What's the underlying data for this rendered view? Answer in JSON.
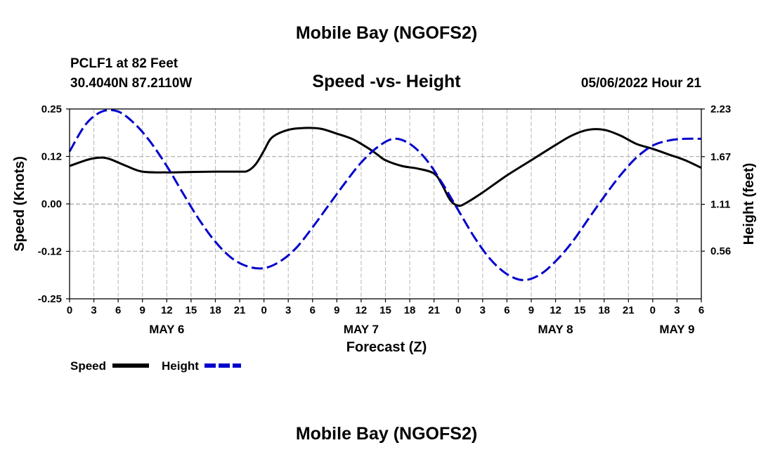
{
  "page": {
    "title": "Mobile Bay (NGOFS2)",
    "footer_title": "Mobile Bay (NGOFS2)",
    "station": "PCLF1 at 82 Feet",
    "coords": "30.4040N  87.2110W",
    "subtitle": "Speed -vs- Height",
    "datetime": "05/06/2022 Hour 21"
  },
  "chart_data": {
    "type": "line",
    "title": "Speed -vs- Height",
    "xlabel": "Forecast (Z)",
    "ylabel": "Speed (Knots)",
    "ylabel_right": "Height (feet)",
    "x_hours_range": [
      0,
      78
    ],
    "x_tick_labels": [
      "0",
      "3",
      "6",
      "9",
      "12",
      "15",
      "18",
      "21",
      "0",
      "3",
      "6",
      "9",
      "12",
      "15",
      "18",
      "21",
      "0",
      "3",
      "6",
      "9",
      "12",
      "15",
      "18",
      "21",
      "0",
      "3",
      "6"
    ],
    "day_labels": [
      {
        "label": "MAY 6",
        "hour": 12
      },
      {
        "label": "MAY 7",
        "hour": 36
      },
      {
        "label": "MAY 8",
        "hour": 60
      },
      {
        "label": "MAY 9",
        "hour": 75
      }
    ],
    "y_left": {
      "range": [
        -0.25,
        0.25
      ],
      "ticks": [
        "0.25",
        "0.12",
        "0.00",
        "-0.12",
        "-0.25"
      ],
      "tick_values": [
        0.25,
        0.125,
        0,
        -0.125,
        -0.25
      ]
    },
    "y_right": {
      "range": [
        0.0,
        2.23
      ],
      "ticks": [
        "2.23",
        "1.67",
        "1.11",
        "0.56"
      ],
      "tick_values": [
        2.23,
        1.67,
        1.11,
        0.56
      ]
    },
    "grid": true,
    "legend_position": "bottom-left",
    "series": [
      {
        "name": "Speed",
        "axis": "left",
        "color": "#000000",
        "style": "solid",
        "x": [
          0,
          2,
          3,
          4,
          5,
          7,
          9,
          12,
          15,
          18,
          21,
          22,
          23,
          24,
          25,
          27,
          29,
          31,
          33,
          35,
          37,
          38,
          39,
          41,
          43,
          45,
          46,
          47,
          48,
          49,
          51,
          54,
          57,
          60,
          62,
          64,
          66,
          68,
          70,
          72,
          74,
          76,
          78
        ],
        "values": [
          0.1,
          0.115,
          0.12,
          0.122,
          0.118,
          0.1,
          0.085,
          0.083,
          0.084,
          0.085,
          0.085,
          0.087,
          0.105,
          0.14,
          0.175,
          0.195,
          0.2,
          0.198,
          0.185,
          0.17,
          0.145,
          0.13,
          0.115,
          0.1,
          0.093,
          0.08,
          0.05,
          0.01,
          -0.005,
          0.003,
          0.03,
          0.075,
          0.115,
          0.155,
          0.18,
          0.195,
          0.195,
          0.18,
          0.158,
          0.145,
          0.13,
          0.115,
          0.095
        ]
      },
      {
        "name": "Height",
        "axis": "right",
        "color": "#0000cc",
        "style": "dashed",
        "x": [
          0,
          2,
          4,
          6,
          8,
          10,
          12,
          14,
          16,
          18,
          20,
          22,
          24,
          26,
          28,
          30,
          32,
          34,
          36,
          38,
          40,
          42,
          44,
          46,
          48,
          50,
          52,
          54,
          56,
          58,
          60,
          62,
          64,
          66,
          68,
          70,
          72,
          74,
          76,
          78
        ],
        "values": [
          1.73,
          2.05,
          2.2,
          2.2,
          2.06,
          1.84,
          1.56,
          1.24,
          0.93,
          0.67,
          0.48,
          0.38,
          0.36,
          0.44,
          0.6,
          0.84,
          1.1,
          1.36,
          1.6,
          1.78,
          1.88,
          1.82,
          1.64,
          1.36,
          1.04,
          0.72,
          0.46,
          0.29,
          0.22,
          0.28,
          0.44,
          0.66,
          0.93,
          1.2,
          1.45,
          1.66,
          1.8,
          1.86,
          1.88,
          1.88
        ]
      }
    ]
  }
}
